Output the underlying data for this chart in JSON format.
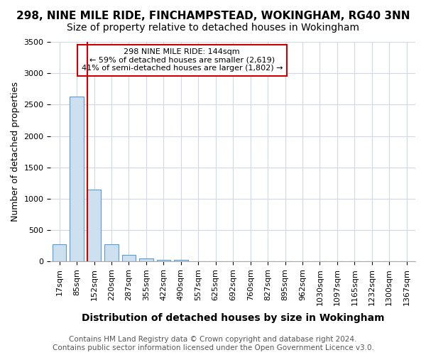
{
  "title_line1": "298, NINE MILE RIDE, FINCHAMPSTEAD, WOKINGHAM, RG40 3NN",
  "title_line2": "Size of property relative to detached houses in Wokingham",
  "xlabel": "Distribution of detached houses by size in Wokingham",
  "ylabel": "Number of detached properties",
  "categories": [
    "17sqm",
    "85sqm",
    "152sqm",
    "220sqm",
    "287sqm",
    "355sqm",
    "422sqm",
    "490sqm",
    "557sqm",
    "625sqm",
    "692sqm",
    "760sqm",
    "827sqm",
    "895sqm",
    "962sqm",
    "1030sqm",
    "1097sqm",
    "1165sqm",
    "1232sqm",
    "1300sqm",
    "1367sqm"
  ],
  "values": [
    270,
    2630,
    1140,
    270,
    100,
    50,
    30,
    30,
    0,
    0,
    0,
    0,
    0,
    0,
    0,
    0,
    0,
    0,
    0,
    0,
    0
  ],
  "bar_color": "#cce0f0",
  "bar_edge_color": "#5b9bd5",
  "vline_x_index": 2,
  "vline_color": "#cc0000",
  "annotation_text": "298 NINE MILE RIDE: 144sqm\n← 59% of detached houses are smaller (2,619)\n41% of semi-detached houses are larger (1,802) →",
  "annotation_box_color": "#ffffff",
  "annotation_box_edge": "#cc0000",
  "ylim": [
    0,
    3500
  ],
  "yticks": [
    0,
    500,
    1000,
    1500,
    2000,
    2500,
    3000,
    3500
  ],
  "footer_line1": "Contains HM Land Registry data © Crown copyright and database right 2024.",
  "footer_line2": "Contains public sector information licensed under the Open Government Licence v3.0.",
  "bg_color": "#ffffff",
  "grid_color": "#d0d8e8",
  "title_fontsize": 11,
  "subtitle_fontsize": 10,
  "tick_fontsize": 8,
  "ylabel_fontsize": 9,
  "xlabel_fontsize": 10,
  "footer_fontsize": 7.5
}
